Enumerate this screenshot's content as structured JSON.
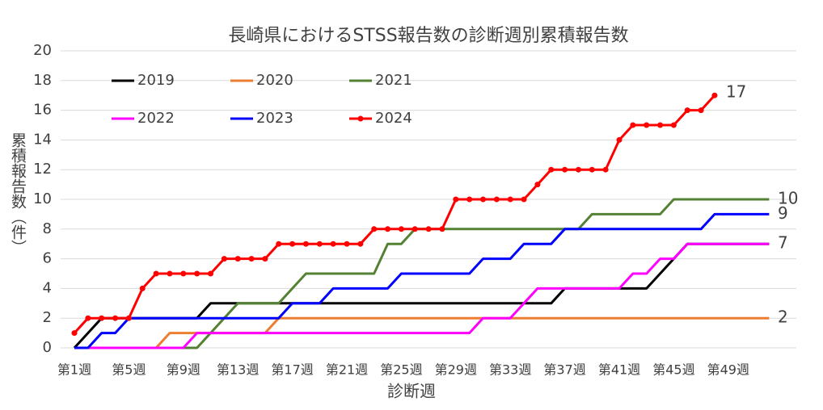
{
  "chart_data": {
    "type": "line",
    "title": "長崎県におけるSTSS報告数の診断週別累積報告数",
    "x_label": "診断週",
    "y_label": "累積報告数（件）",
    "categories": [
      "第1週",
      null,
      null,
      null,
      "第5週",
      null,
      null,
      null,
      "第9週",
      null,
      null,
      null,
      "第13週",
      null,
      null,
      null,
      "第17週",
      null,
      null,
      null,
      "第21週",
      null,
      null,
      null,
      "第25週",
      null,
      null,
      null,
      "第29週",
      null,
      null,
      null,
      "第33週",
      null,
      null,
      null,
      "第37週",
      null,
      null,
      null,
      "第41週",
      null,
      null,
      null,
      "第45週",
      null,
      null,
      null,
      "第49週",
      null,
      null,
      null
    ],
    "ylim": [
      0,
      20
    ],
    "yticks": [
      0,
      2,
      4,
      6,
      8,
      10,
      12,
      14,
      16,
      18,
      20
    ],
    "grid": true,
    "series": [
      {
        "name": "2019",
        "color": "#000000",
        "values": [
          0,
          1,
          2,
          2,
          2,
          2,
          2,
          2,
          2,
          2,
          3,
          3,
          3,
          3,
          3,
          3,
          3,
          3,
          3,
          3,
          3,
          3,
          3,
          3,
          3,
          3,
          3,
          3,
          3,
          3,
          3,
          3,
          3,
          3,
          3,
          3,
          4,
          4,
          4,
          4,
          4,
          4,
          4,
          5,
          6,
          7,
          7,
          7,
          7,
          7,
          7,
          7
        ]
      },
      {
        "name": "2020",
        "color": "#ed7d31",
        "end_label": 2,
        "values": [
          0,
          0,
          0,
          0,
          0,
          0,
          0,
          1,
          1,
          1,
          1,
          1,
          1,
          1,
          1,
          2,
          2,
          2,
          2,
          2,
          2,
          2,
          2,
          2,
          2,
          2,
          2,
          2,
          2,
          2,
          2,
          2,
          2,
          2,
          2,
          2,
          2,
          2,
          2,
          2,
          2,
          2,
          2,
          2,
          2,
          2,
          2,
          2,
          2,
          2,
          2,
          2
        ]
      },
      {
        "name": "2021",
        "color": "#548235",
        "end_label": 10,
        "values": [
          0,
          0,
          0,
          0,
          0,
          0,
          0,
          0,
          0,
          0,
          1,
          2,
          3,
          3,
          3,
          3,
          4,
          5,
          5,
          5,
          5,
          5,
          5,
          7,
          7,
          8,
          8,
          8,
          8,
          8,
          8,
          8,
          8,
          8,
          8,
          8,
          8,
          8,
          9,
          9,
          9,
          9,
          9,
          9,
          10,
          10,
          10,
          10,
          10,
          10,
          10,
          10
        ]
      },
      {
        "name": "2022",
        "color": "#ff00ff",
        "end_label": 7,
        "values": [
          0,
          0,
          0,
          0,
          0,
          0,
          0,
          0,
          0,
          1,
          1,
          1,
          1,
          1,
          1,
          1,
          1,
          1,
          1,
          1,
          1,
          1,
          1,
          1,
          1,
          1,
          1,
          1,
          1,
          1,
          2,
          2,
          2,
          3,
          4,
          4,
          4,
          4,
          4,
          4,
          4,
          5,
          5,
          6,
          6,
          7,
          7,
          7,
          7,
          7,
          7,
          7
        ]
      },
      {
        "name": "2023",
        "color": "#0000ff",
        "end_label": 9,
        "values": [
          0,
          0,
          1,
          1,
          2,
          2,
          2,
          2,
          2,
          2,
          2,
          2,
          2,
          2,
          2,
          2,
          3,
          3,
          3,
          4,
          4,
          4,
          4,
          4,
          5,
          5,
          5,
          5,
          5,
          5,
          6,
          6,
          6,
          7,
          7,
          7,
          8,
          8,
          8,
          8,
          8,
          8,
          8,
          8,
          8,
          8,
          8,
          9,
          9,
          9,
          9,
          9
        ]
      },
      {
        "name": "2024",
        "color": "#ff0000",
        "marker": true,
        "end_label": 17,
        "values": [
          1,
          2,
          2,
          2,
          2,
          4,
          5,
          5,
          5,
          5,
          5,
          6,
          6,
          6,
          6,
          7,
          7,
          7,
          7,
          7,
          7,
          7,
          8,
          8,
          8,
          8,
          8,
          8,
          10,
          10,
          10,
          10,
          10,
          10,
          11,
          12,
          12,
          12,
          12,
          12,
          14,
          15,
          15,
          15,
          15,
          16,
          16,
          17,
          null,
          null,
          null,
          null
        ]
      }
    ]
  }
}
